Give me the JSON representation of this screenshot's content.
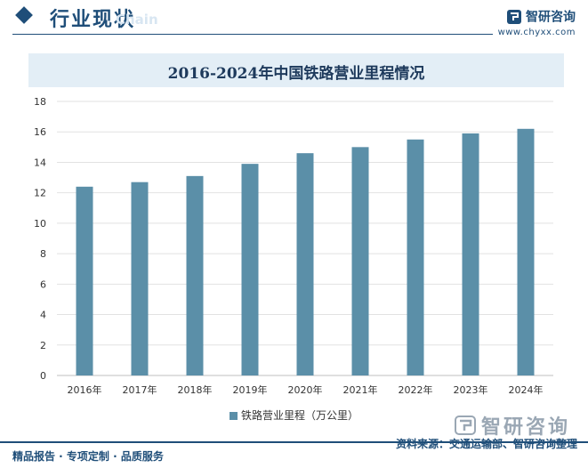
{
  "header": {
    "title": "行业现状",
    "subtitle_en": "Chain"
  },
  "brand": {
    "name": "智研咨询",
    "url": "www.chyxx.com"
  },
  "footer": {
    "left": "精品报告 · 专项定制 · 品质服务",
    "source": "资料来源：交通运输部、智研咨询整理",
    "logo_text": "智研咨询"
  },
  "colors": {
    "bar": "#5b8fa8",
    "accent": "#1f4e79"
  },
  "chart_data": {
    "type": "bar",
    "title": "2016-2024年中国铁路营业里程情况",
    "categories": [
      "2016年",
      "2017年",
      "2018年",
      "2019年",
      "2020年",
      "2021年",
      "2022年",
      "2023年",
      "2024年"
    ],
    "series": [
      {
        "name": "铁路营业里程（万公里）",
        "values": [
          12.4,
          12.7,
          13.1,
          13.9,
          14.6,
          15.0,
          15.5,
          15.9,
          16.2
        ]
      }
    ],
    "yticks": [
      0,
      2,
      4,
      6,
      8,
      10,
      12,
      14,
      16,
      18
    ],
    "ylim": [
      0,
      18
    ],
    "grid": true,
    "legend_position": "bottom"
  }
}
